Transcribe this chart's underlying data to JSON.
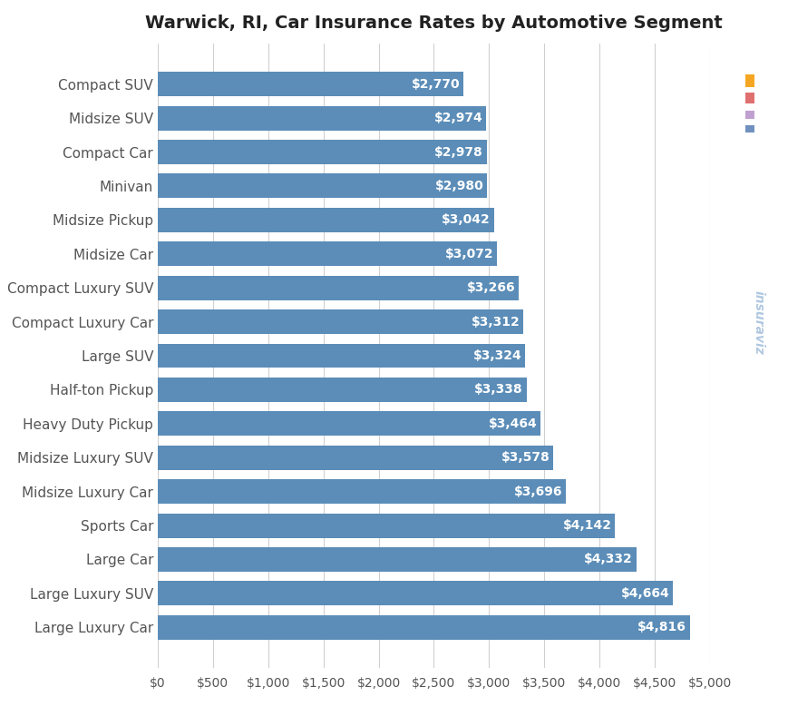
{
  "title": "Warwick, RI, Car Insurance Rates by Automotive Segment",
  "categories": [
    "Large Luxury Car",
    "Large Luxury SUV",
    "Large Car",
    "Sports Car",
    "Midsize Luxury Car",
    "Midsize Luxury SUV",
    "Heavy Duty Pickup",
    "Half-ton Pickup",
    "Large SUV",
    "Compact Luxury Car",
    "Compact Luxury SUV",
    "Midsize Car",
    "Midsize Pickup",
    "Minivan",
    "Compact Car",
    "Midsize SUV",
    "Compact SUV"
  ],
  "values": [
    4816,
    4664,
    4332,
    4142,
    3696,
    3578,
    3464,
    3338,
    3324,
    3312,
    3266,
    3072,
    3042,
    2980,
    2978,
    2974,
    2770
  ],
  "bar_color": "#5b8db8",
  "label_color": "#ffffff",
  "background_color": "#ffffff",
  "grid_color": "#d0d0d0",
  "title_fontsize": 14,
  "label_fontsize": 10,
  "tick_fontsize": 10,
  "ytick_fontsize": 11,
  "xlim": [
    0,
    5000
  ],
  "xticks": [
    0,
    500,
    1000,
    1500,
    2000,
    2500,
    3000,
    3500,
    4000,
    4500,
    5000
  ],
  "watermark_text": "insuraviz",
  "watermark_color": "#b0c8e0",
  "watermark_dot_colors": [
    "#f5a623",
    "#e07070",
    "#c0a0d0",
    "#7090c0"
  ],
  "bar_height": 0.72
}
